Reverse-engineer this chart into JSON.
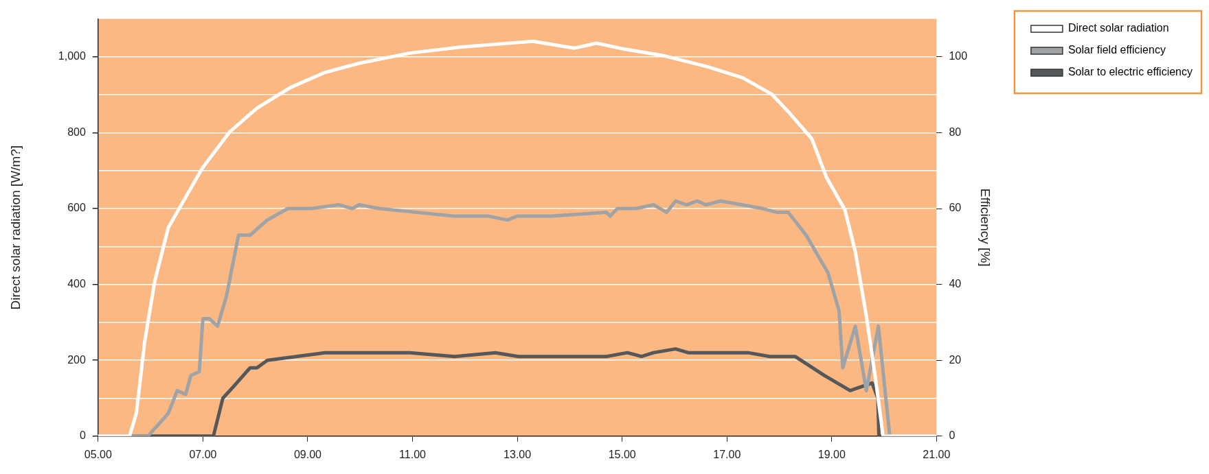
{
  "chart_data": {
    "type": "line",
    "ylabel": "Direct solar radiation [W/m?]",
    "y2label": "Efficiency [%]",
    "xlim": [
      5,
      21
    ],
    "xticks": [
      {
        "value": 5,
        "label": "05.00"
      },
      {
        "value": 7,
        "label": "07.00"
      },
      {
        "value": 9,
        "label": "09.00"
      },
      {
        "value": 11,
        "label": "11.00"
      },
      {
        "value": 13,
        "label": "13.00"
      },
      {
        "value": 15,
        "label": "15.00"
      },
      {
        "value": 17,
        "label": "17.00"
      },
      {
        "value": 19,
        "label": "19.00"
      },
      {
        "value": 21,
        "label": "21.00"
      }
    ],
    "ylim": [
      0,
      1100
    ],
    "yticks": [
      0,
      {
        "value": 100,
        "label": null
      },
      200,
      {
        "value": 300,
        "label": null
      },
      400,
      {
        "value": 500,
        "label": null
      },
      600,
      {
        "value": 700,
        "label": null
      },
      800,
      {
        "value": 900,
        "label": null
      },
      {
        "value": 1000,
        "label": "1,000"
      }
    ],
    "y2lim": [
      0,
      110
    ],
    "y2ticks": [
      0,
      20,
      40,
      60,
      80,
      100
    ],
    "grid": "y",
    "legend": "top right",
    "line_style": "solid",
    "marker": "none",
    "series": [
      {
        "name": "Direct solar radiation",
        "color": "#ffffff",
        "x": [
          5,
          5.6,
          5.73,
          5.89,
          6.08,
          6.34,
          6.6,
          6.99,
          7.51,
          8.03,
          8.68,
          9.33,
          9.98,
          10.95,
          11.93,
          13.02,
          13.3,
          14.09,
          14.51,
          15.06,
          15.76,
          16.6,
          17.3,
          17.85,
          18.2,
          18.62,
          18.9,
          19.25,
          19.45,
          19.66,
          19.84,
          19.98,
          21
        ],
        "values": [
          0,
          0,
          61,
          250,
          408,
          550,
          613,
          707,
          802,
          865,
          920,
          959,
          983,
          1010,
          1026,
          1038,
          1041,
          1023,
          1036,
          1020,
          1004,
          975,
          945,
          902,
          851,
          784,
          682,
          597,
          486,
          317,
          147,
          0,
          0
        ]
      },
      {
        "name": "Solar field efficiency",
        "color": "#a0a3a6",
        "axis": "y2",
        "x": [
          5,
          5.95,
          6.34,
          6.51,
          6.67,
          6.77,
          6.93,
          7.0,
          7.12,
          7.28,
          7.45,
          7.68,
          7.9,
          8.23,
          8.62,
          9.07,
          9.59,
          9.85,
          9.98,
          10.37,
          11.8,
          12.45,
          12.81,
          13.0,
          13.28,
          13.66,
          14.7,
          14.77,
          14.91,
          15.26,
          15.6,
          15.85,
          16.02,
          16.23,
          16.43,
          16.6,
          16.88,
          17.68,
          17.96,
          18.17,
          18.51,
          18.93,
          19.14,
          19.21,
          19.45,
          19.66,
          19.89,
          20.1,
          20.11,
          21
        ],
        "values": [
          0,
          0,
          6,
          12,
          11,
          16,
          17,
          31,
          31,
          29,
          37,
          53,
          53,
          57,
          60,
          60,
          61,
          60,
          61,
          60,
          58,
          58,
          57,
          58,
          58,
          58,
          59,
          58,
          60,
          60,
          61,
          59,
          62,
          61,
          62,
          61,
          62,
          60,
          59,
          59,
          53,
          43,
          33,
          18,
          29,
          12,
          29,
          1,
          0,
          0
        ]
      },
      {
        "name": "Solar to electric efficiency",
        "color": "#55585a",
        "axis": "y2",
        "x": [
          5,
          7.2,
          7.38,
          7.58,
          7.77,
          7.9,
          8.03,
          8.23,
          9.33,
          10.95,
          11.8,
          12.58,
          13.02,
          13.66,
          14.7,
          15.1,
          15.37,
          15.6,
          16.02,
          16.26,
          17.4,
          17.82,
          18.3,
          18.86,
          19.35,
          19.56,
          19.77,
          19.88,
          19.9,
          21
        ],
        "values": [
          0,
          0,
          10,
          13,
          16,
          18,
          18,
          20,
          22,
          22,
          21,
          22,
          21,
          21,
          21,
          22,
          21,
          22,
          23,
          22,
          22,
          21,
          21,
          16,
          12,
          13,
          14,
          10,
          0,
          0
        ]
      }
    ]
  }
}
